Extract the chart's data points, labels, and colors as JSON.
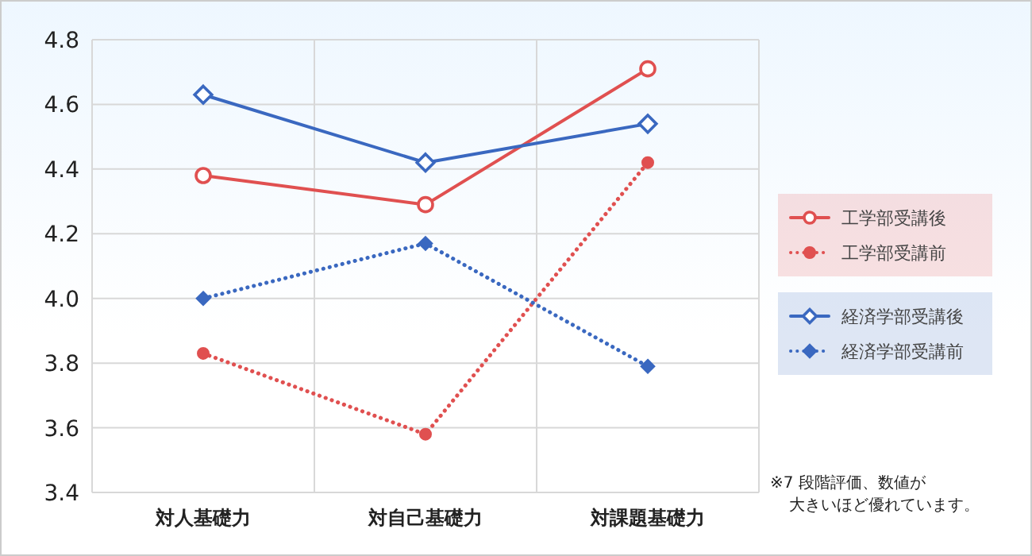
{
  "chart_data": {
    "type": "line",
    "categories": [
      "対人基礎力",
      "対自己基礎力",
      "対課題基礎力"
    ],
    "ylim": [
      3.4,
      4.8
    ],
    "yticks": [
      3.4,
      3.6,
      3.8,
      {
        "value": 4,
        "label": "4.0"
      },
      4.2,
      4.4,
      4.6,
      4.8
    ],
    "grid": true,
    "legend": "right",
    "series": [
      {
        "name": "工学部受講後",
        "color": "#e05050",
        "values": [
          4.38,
          4.29,
          4.71
        ],
        "marker": "circle",
        "line_style": "solid"
      },
      {
        "name": "工学部受講前",
        "color": "#e05050",
        "values": [
          3.83,
          3.58,
          4.42
        ],
        "marker": "circle",
        "line_style": "dotted"
      },
      {
        "name": "経済学部受講後",
        "color": "#3a68c0",
        "values": [
          4.63,
          4.42,
          4.54
        ],
        "marker": "diamond",
        "line_style": "solid"
      },
      {
        "name": "経済学部受講前",
        "color": "#3a68c0",
        "values": [
          4.0,
          4.17,
          3.79
        ],
        "marker": "diamond",
        "line_style": "dotted"
      }
    ],
    "annotations": [
      "※7 段階評価、数値が",
      "大きいほど優れています。"
    ]
  }
}
